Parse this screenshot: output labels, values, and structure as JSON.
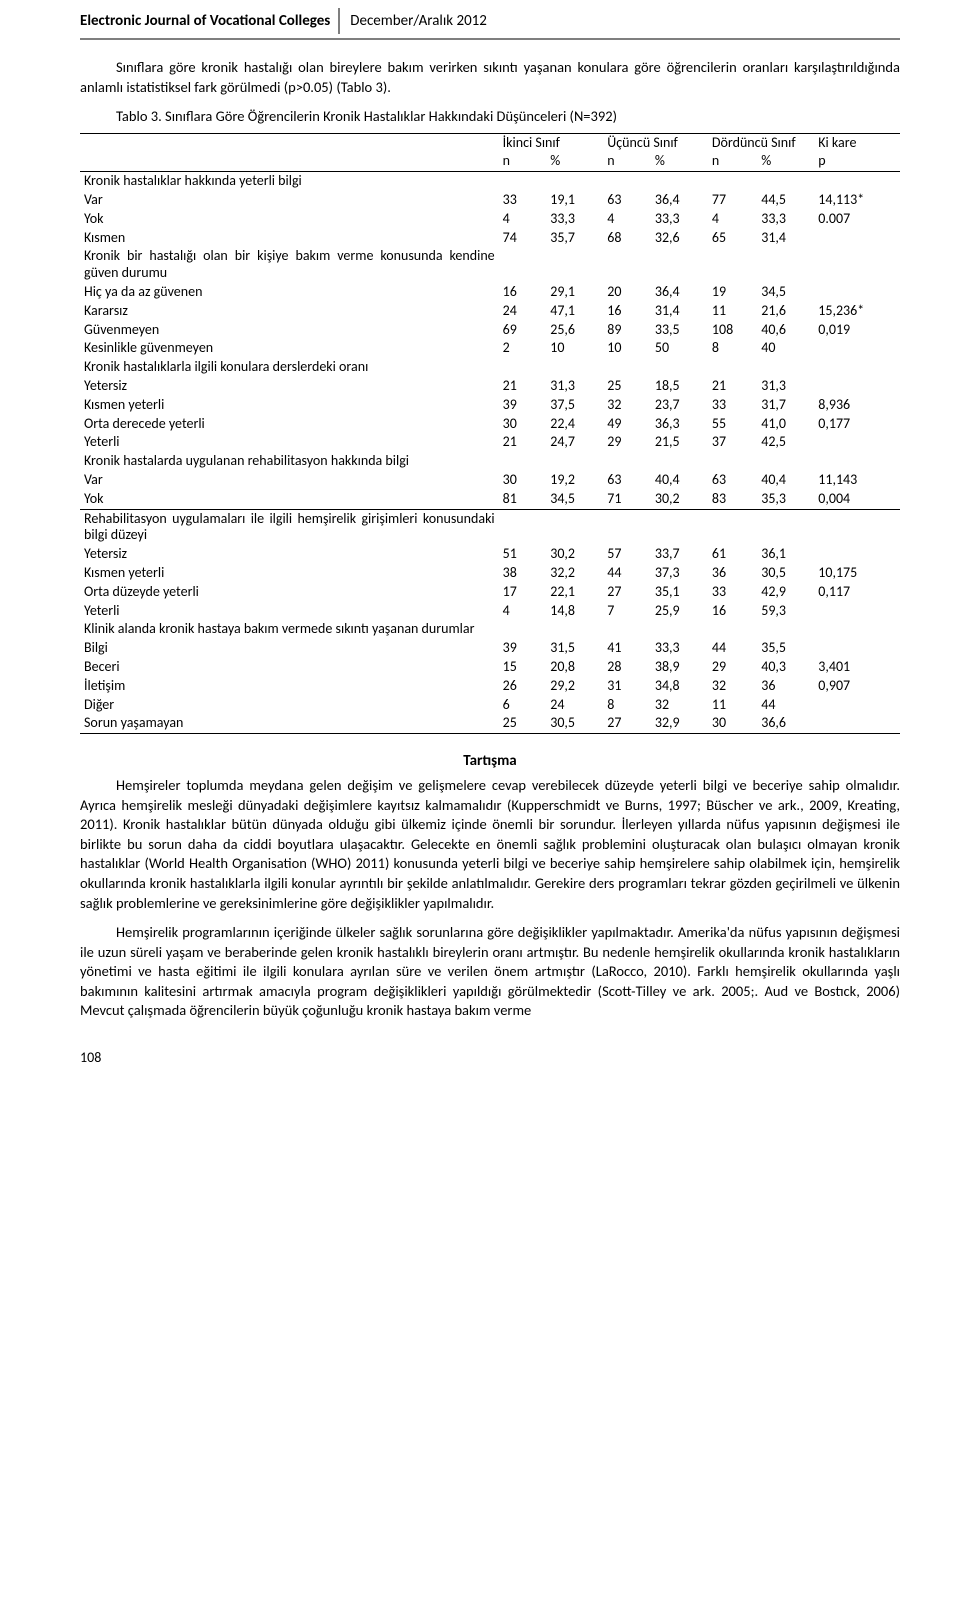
{
  "header": {
    "title": "Electronic Journal of Vocational Colleges",
    "date": "December/Aralık 2012"
  },
  "para_top": "Sınıflara göre kronik hastalığı olan bireylere bakım verirken sıkıntı yaşanan konulara göre öğrencilerin oranları karşılaştırıldığında anlamlı istatistiksel fark görülmedi (p>0.05) (Tablo 3).",
  "table3": {
    "caption": "Tablo 3. Sınıflara Göre Öğrencilerin Kronik Hastalıklar Hakkındaki Düşünceleri (N=392)",
    "head": {
      "c1": "İkinci Sınıf",
      "c2": "Üçüncü Sınıf",
      "c3": "Dördüncü Sınıf",
      "c4": "Ki kare",
      "n": "n",
      "pct": "%",
      "p": "p"
    },
    "groups": [
      {
        "title": "Kronik hastalıklar hakkında yeterli bilgi",
        "rows": [
          {
            "label": "Var",
            "v": [
              "33",
              "19,1",
              "63",
              "36,4",
              "77",
              "44,5",
              "14,113*"
            ]
          },
          {
            "label": "Yok",
            "v": [
              "4",
              "33,3",
              "4",
              "33,3",
              "4",
              "33,3",
              "0.007"
            ]
          },
          {
            "label": "Kısmen",
            "v": [
              "74",
              "35,7",
              "68",
              "32,6",
              "65",
              "31,4",
              ""
            ]
          }
        ]
      },
      {
        "title": "Kronik bir hastalığı olan bir kişiye bakım verme konusunda kendine güven durumu",
        "rows": [
          {
            "label": "Hiç ya da az güvenen",
            "v": [
              "16",
              "29,1",
              "20",
              "36,4",
              "19",
              "34,5",
              ""
            ]
          },
          {
            "label": "Kararsız",
            "v": [
              "24",
              "47,1",
              "16",
              "31,4",
              "11",
              "21,6",
              "15,236*"
            ]
          },
          {
            "label": "Güvenmeyen",
            "v": [
              "69",
              "25,6",
              "89",
              "33,5",
              "108",
              "40,6",
              "0,019"
            ]
          },
          {
            "label": "Kesinlikle güvenmeyen",
            "v": [
              "2",
              "10",
              "10",
              "50",
              "8",
              "40",
              ""
            ]
          }
        ]
      },
      {
        "title": "Kronik hastalıklarla ilgili konulara derslerdeki oranı",
        "rows": [
          {
            "label": "Yetersiz",
            "v": [
              "21",
              "31,3",
              "25",
              "18,5",
              "21",
              "31,3",
              ""
            ]
          },
          {
            "label": "Kısmen yeterli",
            "v": [
              "39",
              "37,5",
              "32",
              "23,7",
              "33",
              "31,7",
              "8,936"
            ]
          },
          {
            "label": "Orta derecede yeterli",
            "v": [
              "30",
              "22,4",
              "49",
              "36,3",
              "55",
              "41,0",
              "0,177"
            ]
          },
          {
            "label": "Yeterli",
            "v": [
              "21",
              "24,7",
              "29",
              "21,5",
              "37",
              "42,5",
              ""
            ]
          }
        ]
      },
      {
        "title": "Kronik hastalarda uygulanan rehabilitasyon hakkında bilgi",
        "rows": [
          {
            "label": "Var",
            "v": [
              "30",
              "19,2",
              "63",
              "40,4",
              "63",
              "40,4",
              "11,143"
            ]
          },
          {
            "label": "Yok",
            "v": [
              "81",
              "34,5",
              "71",
              "30,2",
              "83",
              "35,3",
              "0,004"
            ]
          }
        ],
        "bottom_rule": true
      },
      {
        "title": "Rehabilitasyon uygulamaları ile ilgili hemşirelik girişimleri konusundaki bilgi düzeyi",
        "rows": [
          {
            "label": "Yetersiz",
            "v": [
              "51",
              "30,2",
              "57",
              "33,7",
              "61",
              "36,1",
              ""
            ]
          },
          {
            "label": "Kısmen yeterli",
            "v": [
              "38",
              "32,2",
              "44",
              "37,3",
              "36",
              "30,5",
              "10,175"
            ]
          },
          {
            "label": "Orta düzeyde yeterli",
            "v": [
              "17",
              "22,1",
              "27",
              "35,1",
              "33",
              "42,9",
              "0,117"
            ]
          },
          {
            "label": "Yeterli",
            "v": [
              "4",
              "14,8",
              "7",
              "25,9",
              "16",
              "59,3",
              ""
            ]
          }
        ]
      },
      {
        "title": "Klinik alanda kronik hastaya bakım vermede sıkıntı yaşanan durumlar",
        "rows": [
          {
            "label": "Bilgi",
            "v": [
              "39",
              "31,5",
              "41",
              "33,3",
              "44",
              "35,5",
              ""
            ]
          },
          {
            "label": "Beceri",
            "v": [
              "15",
              "20,8",
              "28",
              "38,9",
              "29",
              "40,3",
              "3,401"
            ]
          },
          {
            "label": "İletişim",
            "v": [
              "26",
              "29,2",
              "31",
              "34,8",
              "32",
              "36",
              "0,907"
            ]
          },
          {
            "label": "Diğer",
            "v": [
              "6",
              "24",
              "8",
              "32",
              "11",
              "44",
              ""
            ]
          },
          {
            "label": "Sorun yaşamayan",
            "v": [
              "25",
              "30,5",
              "27",
              "32,9",
              "30",
              "36,6",
              ""
            ]
          }
        ]
      }
    ]
  },
  "discussion": {
    "title": "Tartışma",
    "p1": "Hemşireler toplumda meydana gelen değişim ve gelişmelere cevap verebilecek düzeyde yeterli bilgi ve beceriye sahip olmalıdır. Ayrıca hemşirelik mesleği dünyadaki değişimlere kayıtsız kalmamalıdır (Kupperschmidt ve Burns, 1997; Büscher ve ark., 2009, Kreating,  2011).  Kronik hastalıklar bütün dünyada olduğu gibi ülkemiz içinde önemli bir sorundur. İlerleyen yıllarda nüfus yapısının değişmesi ile birlikte bu sorun daha da ciddi boyutlara ulaşacaktır. Gelecekte en önemli sağlık problemini oluşturacak olan bulaşıcı olmayan kronik hastalıklar (World Health Organisation (WHO) 2011) konusunda yeterli bilgi ve beceriye sahip hemşirelere sahip olabilmek için, hemşirelik okullarında kronik hastalıklarla ilgili konular ayrıntılı bir şekilde anlatılmalıdır. Gerekire ders programları tekrar gözden geçirilmeli ve ülkenin sağlık problemlerine ve gereksinimlerine göre değişiklikler yapılmalıdır.",
    "p2": "Hemşirelik programlarının içeriğinde ülkeler sağlık sorunlarına göre değişiklikler yapılmaktadır. Amerika'da nüfus yapısının değişmesi ile uzun süreli yaşam ve beraberinde gelen kronik hastalıklı bireylerin oranı artmıştır. Bu nedenle hemşirelik okullarında kronik hastalıkların yönetimi ve hasta eğitimi ile ilgili konulara ayrılan süre ve verilen önem artmıştır (LaRocco, 2010). Farklı hemşirelik okullarında yaşlı bakımının kalitesini artırmak amacıyla program değişiklikleri yapıldığı görülmektedir (Scott-Tilley ve ark. 2005;. Aud ve Bostıck, 2006) Mevcut çalışmada öğrencilerin büyük çoğunluğu kronik hastaya bakım verme"
  },
  "page_number": "108"
}
